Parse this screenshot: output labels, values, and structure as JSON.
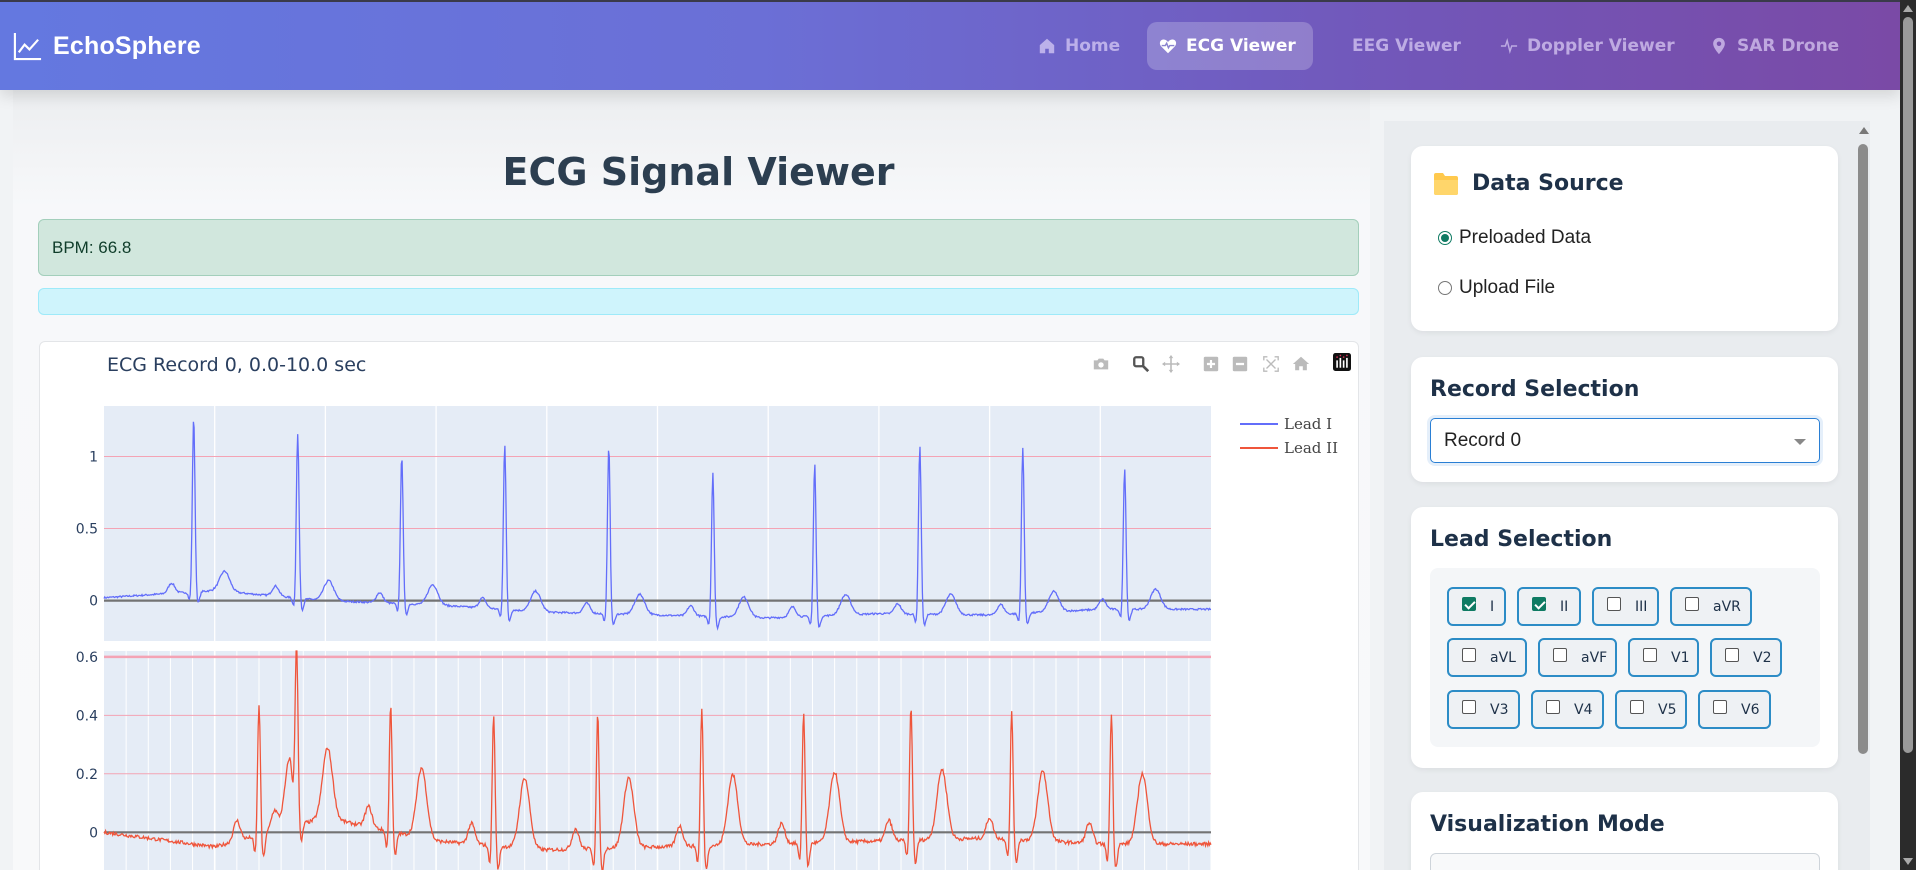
{
  "navbar": {
    "brand": "EchoSphere",
    "brand_icon": "chart-line-icon",
    "items": [
      {
        "label": "Home",
        "icon": "home-icon",
        "active": false
      },
      {
        "label": "ECG Viewer",
        "icon": "heart-pulse-icon",
        "active": true
      },
      {
        "label": "EEG Viewer",
        "icon": "",
        "active": false
      },
      {
        "label": "Doppler Viewer",
        "icon": "wave-pulse-icon",
        "active": false
      },
      {
        "label": "SAR Drone",
        "icon": "map-pin-icon",
        "active": false
      }
    ],
    "gradient": [
      "#6478e0",
      "#7a4aa6"
    ]
  },
  "main": {
    "title": "ECG Signal Viewer",
    "bpm_text": "BPM: 66.8",
    "info_text": ""
  },
  "chart": {
    "title": "ECG Record 0, 0.0-10.0 sec",
    "modebar": [
      "camera-icon",
      "zoom-icon",
      "pan-icon",
      "zoom-in-icon",
      "zoom-out-icon",
      "autoscale-icon",
      "reset-axes-icon",
      "plotly-logo-icon"
    ],
    "legend": [
      {
        "label": "Lead I",
        "color": "#636efa"
      },
      {
        "label": "Lead II",
        "color": "#ef553b"
      }
    ]
  },
  "chart_data": {
    "type": "line",
    "title": "ECG Record 0, 0.0-10.0 sec",
    "xlabel": "",
    "ylabel": "",
    "xlim": [
      0,
      10
    ],
    "subplots": [
      {
        "name": "Lead I",
        "color": "#636efa",
        "ylim": [
          -0.28,
          1.35
        ],
        "yticks": [
          0,
          0.5,
          1
        ],
        "ytick_labels": [
          "0",
          "0.5",
          "1"
        ],
        "grid": "pink horizontal lines at ticks, white vertical lines",
        "r_peaks": {
          "t": [
            0.81,
            1.75,
            2.69,
            3.62,
            4.56,
            5.5,
            6.42,
            7.37,
            8.3,
            9.22
          ],
          "amp": [
            1.22,
            1.14,
            1.03,
            1.15,
            1.17,
            1.0,
            1.06,
            1.17,
            1.15,
            0.98
          ]
        },
        "t_wave_amp": 0.14,
        "baseline_trend": [
          0.02,
          0.07,
          0.0,
          -0.03,
          -0.08,
          -0.1,
          -0.12,
          -0.09,
          -0.1,
          -0.06
        ]
      },
      {
        "name": "Lead II",
        "color": "#ef553b",
        "ylim": [
          -0.17,
          0.62
        ],
        "yticks": [
          0,
          0.2,
          0.4,
          0.6
        ],
        "ytick_labels": [
          "0",
          "0.2",
          "0.4",
          "0.6"
        ],
        "grid": "pink horizontal lines at ticks, dense white vertical lines",
        "r_peaks": {
          "t": [
            1.4,
            1.74,
            2.59,
            3.52,
            4.46,
            5.4,
            6.32,
            7.29,
            8.2,
            9.1
          ],
          "amp": [
            0.45,
            0.56,
            0.44,
            0.45,
            0.46,
            0.47,
            0.45,
            0.46,
            0.44,
            0.45
          ]
        },
        "t_wave_amp": 0.24,
        "baseline_trend": [
          0.0,
          -0.05,
          0.05,
          -0.03,
          -0.06,
          -0.05,
          -0.04,
          -0.03,
          -0.02,
          -0.04
        ]
      }
    ]
  },
  "sidebar": {
    "data_source": {
      "title": "Data Source",
      "icon": "folder-icon",
      "options": [
        {
          "label": "Preloaded Data",
          "checked": true
        },
        {
          "label": "Upload File",
          "checked": false
        }
      ]
    },
    "record_selection": {
      "title": "Record Selection",
      "selected": "Record 0"
    },
    "lead_selection": {
      "title": "Lead Selection",
      "leads": [
        {
          "label": "I",
          "checked": true
        },
        {
          "label": "II",
          "checked": true
        },
        {
          "label": "III",
          "checked": false
        },
        {
          "label": "aVR",
          "checked": false
        },
        {
          "label": "aVL",
          "checked": false
        },
        {
          "label": "aVF",
          "checked": false
        },
        {
          "label": "V1",
          "checked": false
        },
        {
          "label": "V2",
          "checked": false
        },
        {
          "label": "V3",
          "checked": false
        },
        {
          "label": "V4",
          "checked": false
        },
        {
          "label": "V5",
          "checked": false
        },
        {
          "label": "V6",
          "checked": false
        }
      ]
    },
    "visualization_mode": {
      "title": "Visualization Mode"
    }
  },
  "colors": {
    "accent_checked": "#0f7b63",
    "chip_border": "#2c8cc6",
    "title_text": "#2c3e50",
    "success_bg": "#d1e7dd",
    "info_bg": "#cff4fc"
  }
}
